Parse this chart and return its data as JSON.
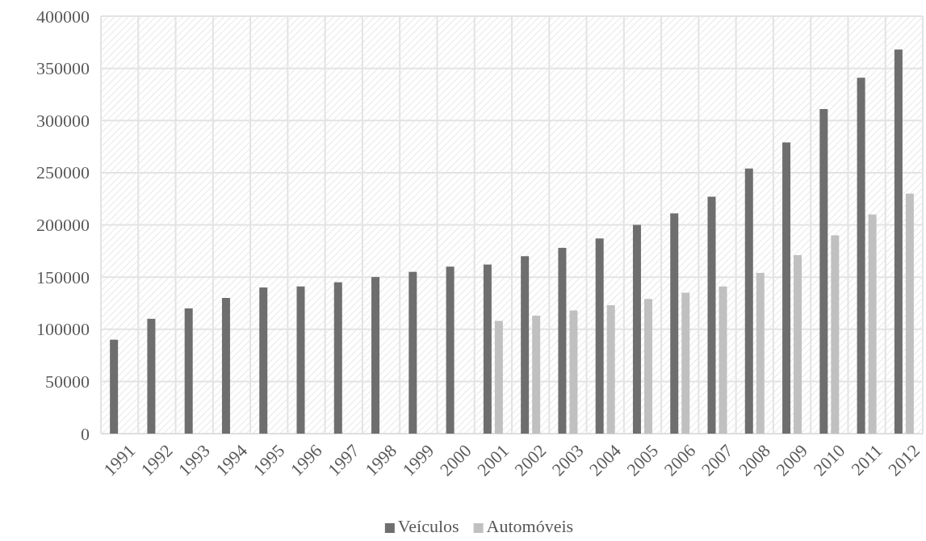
{
  "chart_data": {
    "type": "bar",
    "categories": [
      "1991",
      "1992",
      "1993",
      "1994",
      "1995",
      "1996",
      "1997",
      "1998",
      "1999",
      "2000",
      "2001",
      "2002",
      "2003",
      "2004",
      "2005",
      "2006",
      "2007",
      "2008",
      "2009",
      "2010",
      "2011",
      "2012"
    ],
    "series": [
      {
        "name": "Veículos",
        "color": "#6e6e6e",
        "values": [
          90000,
          110000,
          120000,
          130000,
          140000,
          141000,
          145000,
          150000,
          155000,
          160000,
          162000,
          170000,
          178000,
          187000,
          200000,
          211000,
          227000,
          254000,
          279000,
          311000,
          341000,
          368000
        ]
      },
      {
        "name": "Automóveis",
        "color": "#c0c0c0",
        "values": [
          null,
          null,
          null,
          null,
          null,
          null,
          null,
          null,
          null,
          null,
          108000,
          113000,
          118000,
          123000,
          129000,
          135000,
          141000,
          154000,
          171000,
          190000,
          210000,
          230000
        ]
      }
    ],
    "ylim": [
      0,
      400000
    ],
    "yticks": [
      0,
      50000,
      100000,
      150000,
      200000,
      250000,
      300000,
      350000,
      400000
    ],
    "grid": true,
    "legend": "bottom"
  }
}
